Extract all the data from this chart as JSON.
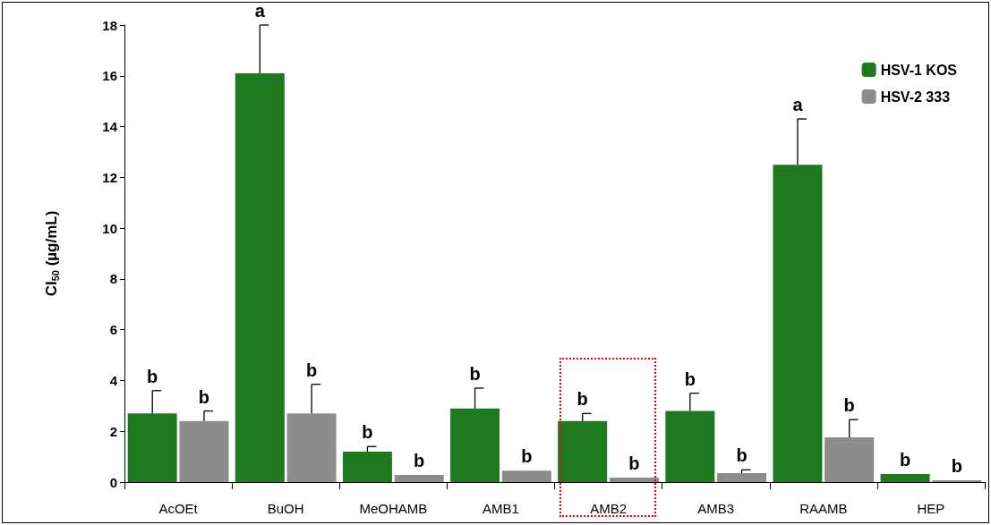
{
  "chart_data": {
    "type": "bar",
    "ylabel": "CI$_{50}$ (µg/mL)",
    "categories": [
      "AcOEt",
      "BuOH",
      "MeOHAMB",
      "AMB1",
      "AMB2",
      "AMB3",
      "RAAMB",
      "HEP"
    ],
    "series": [
      {
        "name": "HSV-1 KOS",
        "color": "#1f7a1f",
        "values": [
          2.7,
          16.1,
          1.2,
          2.9,
          2.4,
          2.8,
          12.5,
          0.32
        ],
        "errors": [
          [
            2.7,
            3.6
          ],
          [
            16.1,
            18
          ],
          [
            1.2,
            1.4
          ],
          [
            2.9,
            3.7
          ],
          [
            2.4,
            2.7
          ],
          [
            2.8,
            3.5
          ],
          [
            12.5,
            14.3
          ],
          null
        ],
        "value_labels": [
          "b",
          "a",
          "b",
          "b",
          "b",
          "b",
          "a",
          "b"
        ]
      },
      {
        "name": "HSV-2 333",
        "color": "#8c8c8c",
        "values": [
          2.4,
          2.7,
          0.28,
          0.45,
          0.18,
          0.35,
          1.76,
          0.07
        ],
        "errors": [
          [
            2.4,
            2.8
          ],
          [
            2.7,
            3.85
          ],
          null,
          null,
          null,
          [
            0.35,
            0.48
          ],
          [
            1.76,
            2.46
          ],
          null
        ],
        "value_labels": [
          "b",
          "b",
          "b",
          "b",
          "b",
          "b",
          "b",
          "b"
        ]
      }
    ],
    "ylim": [
      0,
      18
    ],
    "yticks": [
      0,
      2,
      4,
      6,
      8,
      10,
      12,
      14,
      16,
      18
    ],
    "grid": false,
    "legend": "top right"
  }
}
